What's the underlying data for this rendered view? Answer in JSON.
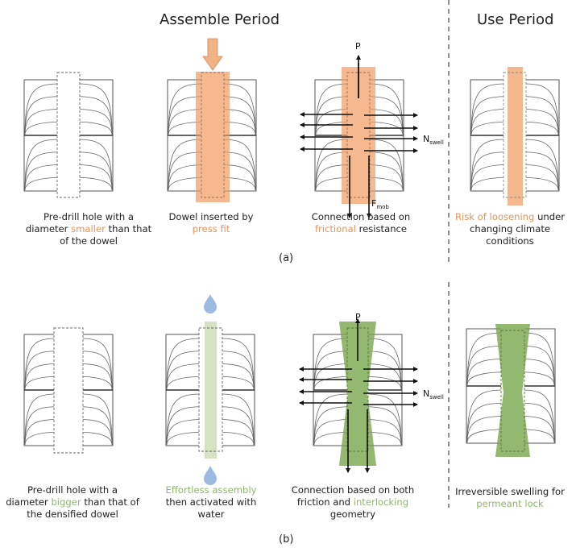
{
  "headings": {
    "assemble_period": "Assemble Period",
    "use_period": "Use Period"
  },
  "colors": {
    "orange_fill": "#f5b88e",
    "orange_text": "#e8935a",
    "green_fill": "#93b86f",
    "green_light_fill": "#d5e3c2",
    "green_text": "#8db86a",
    "water_drop": "#9bbbe3",
    "outline": "#555555"
  },
  "panel_a": {
    "label": "(a)",
    "symbols": {
      "P": "P",
      "N": "N",
      "N_sub": "swell",
      "F": "F",
      "F_sub": "mob"
    },
    "steps": [
      {
        "caption_parts": [
          {
            "text": "Pre-drill hole with a",
            "hl": false
          },
          {
            "text": "\n",
            "hl": false
          },
          {
            "text": "diameter ",
            "hl": false
          },
          {
            "text": "smaller",
            "hl": true
          },
          {
            "text": " than that",
            "hl": false
          },
          {
            "text": "\n",
            "hl": false
          },
          {
            "text": "of the dowel",
            "hl": false
          }
        ]
      },
      {
        "caption_parts": [
          {
            "text": "Dowel inserted by",
            "hl": false
          },
          {
            "text": "\n",
            "hl": false
          },
          {
            "text": "press fit",
            "hl": true
          }
        ]
      },
      {
        "caption_parts": [
          {
            "text": "Connection based on",
            "hl": false
          },
          {
            "text": "\n",
            "hl": false
          },
          {
            "text": "frictional",
            "hl": true
          },
          {
            "text": " resistance",
            "hl": false
          }
        ]
      },
      {
        "caption_parts": [
          {
            "text": "Risk of loosening",
            "hl": true
          },
          {
            "text": " under",
            "hl": false
          },
          {
            "text": "\n",
            "hl": false
          },
          {
            "text": "changing climate",
            "hl": false
          },
          {
            "text": "\n",
            "hl": false
          },
          {
            "text": "conditions",
            "hl": false
          }
        ]
      }
    ]
  },
  "panel_b": {
    "label": "(b)",
    "symbols": {
      "P": "P",
      "N": "N",
      "N_sub": "swell"
    },
    "steps": [
      {
        "caption_parts": [
          {
            "text": "Pre-drill hole with a",
            "hl": false
          },
          {
            "text": "\n",
            "hl": false
          },
          {
            "text": "diameter ",
            "hl": false
          },
          {
            "text": "bigger",
            "hl": true
          },
          {
            "text": " than that of",
            "hl": false
          },
          {
            "text": "\n",
            "hl": false
          },
          {
            "text": "the densified dowel",
            "hl": false
          }
        ]
      },
      {
        "caption_parts": [
          {
            "text": "Effortless assembly",
            "hl": true
          },
          {
            "text": "\n",
            "hl": false
          },
          {
            "text": "then activated with",
            "hl": false
          },
          {
            "text": "\n",
            "hl": false
          },
          {
            "text": "water",
            "hl": false
          }
        ]
      },
      {
        "caption_parts": [
          {
            "text": "Connection based on both",
            "hl": false
          },
          {
            "text": "\n",
            "hl": false
          },
          {
            "text": "friction and ",
            "hl": false
          },
          {
            "text": "interlocking",
            "hl": true
          },
          {
            "text": "\n",
            "hl": false
          },
          {
            "text": "geometry",
            "hl": false
          }
        ]
      },
      {
        "caption_parts": [
          {
            "text": "Irreversible swelling for",
            "hl": false
          },
          {
            "text": "\n",
            "hl": false
          },
          {
            "text": "permeant lock",
            "hl": true
          }
        ]
      }
    ]
  }
}
